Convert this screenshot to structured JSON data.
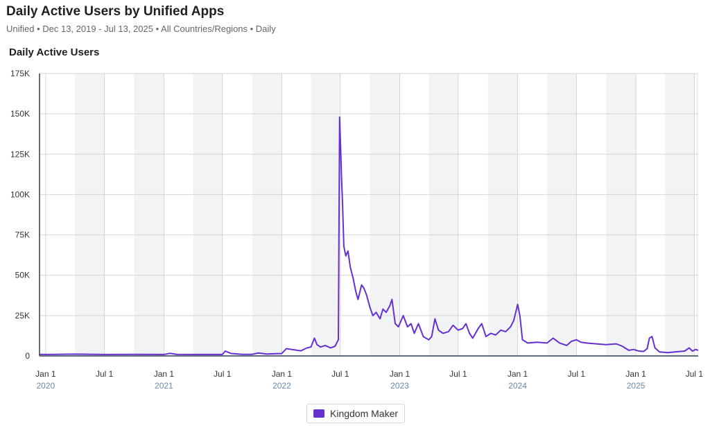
{
  "header": {
    "title": "Daily Active Users by Unified Apps",
    "subtitle": "Unified • Dec 13, 2019 - Jul 13, 2025 • All Countries/Regions • Daily"
  },
  "section_title": "Daily Active Users",
  "colors": {
    "series": "#6530cf",
    "band": "#f1f3f5",
    "grid": "#d4d4d4",
    "axis": "#2f3b4f",
    "year_label": "#6a89a8"
  },
  "chart_data": {
    "type": "line",
    "title": "Daily Active Users",
    "xlabel": "",
    "ylabel": "",
    "x_range": [
      "2019-12-13",
      "2025-07-13"
    ],
    "ylim": [
      0,
      175000
    ],
    "y_ticks": [
      {
        "value": 0,
        "label": "0"
      },
      {
        "value": 25000,
        "label": "25K"
      },
      {
        "value": 50000,
        "label": "50K"
      },
      {
        "value": 75000,
        "label": "75K"
      },
      {
        "value": 100000,
        "label": "100K"
      },
      {
        "value": 125000,
        "label": "125K"
      },
      {
        "value": 150000,
        "label": "150K"
      },
      {
        "value": 175000,
        "label": "175K"
      }
    ],
    "x_ticks": [
      {
        "date": "2020-01-01",
        "label": "Jan 1",
        "year": "2020"
      },
      {
        "date": "2020-07-01",
        "label": "Jul 1",
        "year": ""
      },
      {
        "date": "2021-01-01",
        "label": "Jan 1",
        "year": "2021"
      },
      {
        "date": "2021-07-01",
        "label": "Jul 1",
        "year": ""
      },
      {
        "date": "2022-01-01",
        "label": "Jan 1",
        "year": "2022"
      },
      {
        "date": "2022-07-01",
        "label": "Jul 1",
        "year": ""
      },
      {
        "date": "2023-01-01",
        "label": "Jan 1",
        "year": "2023"
      },
      {
        "date": "2023-07-01",
        "label": "Jul 1",
        "year": ""
      },
      {
        "date": "2024-01-01",
        "label": "Jan 1",
        "year": "2024"
      },
      {
        "date": "2024-07-01",
        "label": "Jul 1",
        "year": ""
      },
      {
        "date": "2025-01-01",
        "label": "Jan 1",
        "year": "2025"
      },
      {
        "date": "2025-07-01",
        "label": "Jul 1",
        "year": ""
      }
    ],
    "grid": true,
    "legend_position": "bottom-center",
    "series": [
      {
        "name": "Kingdom Maker",
        "points": [
          [
            "2019-12-13",
            1000
          ],
          [
            "2020-01-01",
            900
          ],
          [
            "2020-02-01",
            1000
          ],
          [
            "2020-04-01",
            1100
          ],
          [
            "2020-07-01",
            900
          ],
          [
            "2020-10-01",
            1000
          ],
          [
            "2021-01-01",
            900
          ],
          [
            "2021-01-20",
            1600
          ],
          [
            "2021-02-10",
            1000
          ],
          [
            "2021-04-01",
            900
          ],
          [
            "2021-06-01",
            900
          ],
          [
            "2021-07-01",
            900
          ],
          [
            "2021-07-10",
            3000
          ],
          [
            "2021-07-28",
            1500
          ],
          [
            "2021-09-01",
            1000
          ],
          [
            "2021-10-01",
            1000
          ],
          [
            "2021-10-20",
            1800
          ],
          [
            "2021-11-15",
            1200
          ],
          [
            "2021-12-15",
            1400
          ],
          [
            "2022-01-01",
            1500
          ],
          [
            "2022-01-15",
            4500
          ],
          [
            "2022-02-01",
            4000
          ],
          [
            "2022-03-01",
            3200
          ],
          [
            "2022-03-20",
            5000
          ],
          [
            "2022-04-01",
            5500
          ],
          [
            "2022-04-12",
            11000
          ],
          [
            "2022-04-20",
            7000
          ],
          [
            "2022-05-01",
            5500
          ],
          [
            "2022-05-15",
            6500
          ],
          [
            "2022-06-01",
            5000
          ],
          [
            "2022-06-15",
            6000
          ],
          [
            "2022-06-25",
            10000
          ],
          [
            "2022-06-29",
            148000
          ],
          [
            "2022-07-02",
            130000
          ],
          [
            "2022-07-05",
            110000
          ],
          [
            "2022-07-08",
            95000
          ],
          [
            "2022-07-12",
            68000
          ],
          [
            "2022-07-18",
            62000
          ],
          [
            "2022-07-25",
            65000
          ],
          [
            "2022-08-01",
            55000
          ],
          [
            "2022-08-10",
            48000
          ],
          [
            "2022-08-18",
            40000
          ],
          [
            "2022-08-25",
            35000
          ],
          [
            "2022-09-05",
            44000
          ],
          [
            "2022-09-12",
            42000
          ],
          [
            "2022-09-20",
            38000
          ],
          [
            "2022-10-01",
            30000
          ],
          [
            "2022-10-10",
            25000
          ],
          [
            "2022-10-20",
            27000
          ],
          [
            "2022-11-01",
            23000
          ],
          [
            "2022-11-10",
            29000
          ],
          [
            "2022-11-20",
            27000
          ],
          [
            "2022-12-01",
            31000
          ],
          [
            "2022-12-08",
            35000
          ],
          [
            "2022-12-18",
            20000
          ],
          [
            "2022-12-28",
            18000
          ],
          [
            "2023-01-12",
            25000
          ],
          [
            "2023-01-25",
            18000
          ],
          [
            "2023-02-05",
            20000
          ],
          [
            "2023-02-15",
            14000
          ],
          [
            "2023-02-28",
            20000
          ],
          [
            "2023-03-15",
            12000
          ],
          [
            "2023-04-01",
            10000
          ],
          [
            "2023-04-10",
            12000
          ],
          [
            "2023-04-20",
            23000
          ],
          [
            "2023-05-01",
            16000
          ],
          [
            "2023-05-15",
            14000
          ],
          [
            "2023-06-01",
            15000
          ],
          [
            "2023-06-15",
            19000
          ],
          [
            "2023-07-01",
            16000
          ],
          [
            "2023-07-15",
            17000
          ],
          [
            "2023-07-25",
            20000
          ],
          [
            "2023-08-05",
            14000
          ],
          [
            "2023-08-15",
            11000
          ],
          [
            "2023-09-01",
            17000
          ],
          [
            "2023-09-12",
            20000
          ],
          [
            "2023-09-25",
            12000
          ],
          [
            "2023-10-10",
            14000
          ],
          [
            "2023-10-25",
            13000
          ],
          [
            "2023-11-10",
            16000
          ],
          [
            "2023-11-25",
            15000
          ],
          [
            "2023-12-10",
            18000
          ],
          [
            "2023-12-20",
            22000
          ],
          [
            "2024-01-01",
            32000
          ],
          [
            "2024-01-08",
            25000
          ],
          [
            "2024-01-16",
            10000
          ],
          [
            "2024-02-01",
            8000
          ],
          [
            "2024-03-01",
            8500
          ],
          [
            "2024-04-01",
            8000
          ],
          [
            "2024-04-20",
            11000
          ],
          [
            "2024-05-10",
            8000
          ],
          [
            "2024-06-01",
            6500
          ],
          [
            "2024-06-15",
            9000
          ],
          [
            "2024-07-01",
            10000
          ],
          [
            "2024-07-15",
            8500
          ],
          [
            "2024-08-01",
            8000
          ],
          [
            "2024-09-01",
            7500
          ],
          [
            "2024-10-01",
            7000
          ],
          [
            "2024-11-01",
            7500
          ],
          [
            "2024-11-20",
            6000
          ],
          [
            "2024-12-10",
            3500
          ],
          [
            "2024-12-25",
            4000
          ],
          [
            "2025-01-10",
            3000
          ],
          [
            "2025-01-25",
            2800
          ],
          [
            "2025-02-05",
            4500
          ],
          [
            "2025-02-12",
            11000
          ],
          [
            "2025-02-20",
            12000
          ],
          [
            "2025-03-01",
            5000
          ],
          [
            "2025-03-15",
            2500
          ],
          [
            "2025-04-10",
            2000
          ],
          [
            "2025-05-01",
            2500
          ],
          [
            "2025-06-01",
            3000
          ],
          [
            "2025-06-15",
            5000
          ],
          [
            "2025-06-25",
            3000
          ],
          [
            "2025-07-05",
            4000
          ],
          [
            "2025-07-13",
            3500
          ]
        ]
      }
    ]
  },
  "legend": {
    "label": "Kingdom Maker"
  }
}
